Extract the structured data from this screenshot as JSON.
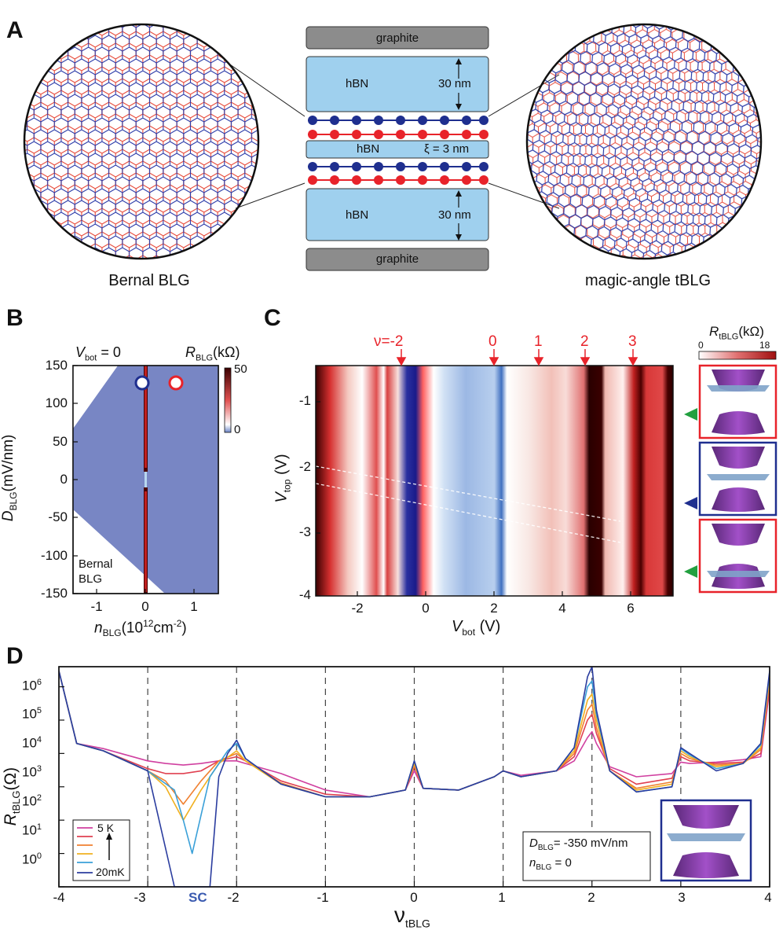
{
  "panels": {
    "a": "A",
    "b": "B",
    "c": "C",
    "d": "D"
  },
  "panelA": {
    "left_caption": "Bernal BLG",
    "right_caption": "magic-angle tBLG",
    "stack": {
      "top_graphite": "graphite",
      "top_hbn": "hBN",
      "top_thickness": "30 nm",
      "mid_hbn": "hBN",
      "xi_label": "ξ = 3 nm",
      "bottom_hbn": "hBN",
      "bottom_thickness": "30 nm",
      "bottom_graphite": "graphite"
    },
    "colors": {
      "blue_atom": "#1f2f8f",
      "red_atom": "#e8232a",
      "hbn": "#9fd0ee",
      "graphite": "#8c8c8c"
    }
  },
  "panelB": {
    "vbot_label": "V",
    "vbot_sub": "bot",
    "vbot_value": " = 0",
    "cb_label": "R",
    "cb_sub": "BLG",
    "cb_unit": "(kΩ)",
    "cb_max": "50",
    "cb_min": "0",
    "inset_label_1": "Bernal",
    "inset_label_2": "BLG",
    "ylabel": "D",
    "ylabel_sub": "BLG",
    "ylabel_unit": "(mV/nm)",
    "xlabel": "n",
    "xlabel_sub": "BLG",
    "xlabel_unit": "(10",
    "xlabel_exp": "12",
    "xlabel_tail": "cm",
    "xlabel_exp2": "-2",
    "xlabel_close": ")"
  },
  "panelC": {
    "filling_labels": [
      "ν=-2",
      "0",
      "1",
      "2",
      "3"
    ],
    "cb_label": "R",
    "cb_sub": "tBLG",
    "cb_unit": "(kΩ)",
    "cb_min": "0",
    "cb_max": "18",
    "ylabel": "V",
    "ylabel_sub": "top",
    "ylabel_unit": " (V)",
    "xlabel": "V",
    "xlabel_sub": "bot",
    "xlabel_unit": " (V)"
  },
  "panelD": {
    "legend_top": "5 K",
    "legend_bottom": "20mK",
    "sc_label": "SC",
    "annot_d": "D",
    "annot_d_sub": "BLG",
    "annot_d_val": "= -350 mV/nm",
    "annot_n": "n",
    "annot_n_sub": "BLG",
    "annot_n_val": " = 0",
    "ylabel": "R",
    "ylabel_sub": "tBLG",
    "ylabel_unit": "(Ω)",
    "xlabel": "ν",
    "xlabel_sub": "tBLG"
  },
  "chart_data": [
    {
      "type": "heatmap",
      "xlim": [
        -1.5,
        1.5
      ],
      "ylim": [
        -150,
        150
      ],
      "x_ticks": [
        "-1",
        "0",
        "1"
      ],
      "y_ticks": [
        "150",
        "100",
        "50",
        "0",
        "-50",
        "-100",
        "-150"
      ],
      "markers": [
        {
          "x": -0.05,
          "y": 130,
          "color": "#1f2f8f"
        },
        {
          "x": 0.6,
          "y": 130,
          "color": "#e8232a"
        }
      ]
    },
    {
      "type": "heatmap",
      "xlim": [
        -3.2,
        7.6
      ],
      "ylim": [
        -4,
        -0.5
      ],
      "x_ticks": [
        "-2",
        "0",
        "2",
        "4",
        "6"
      ],
      "y_ticks": [
        "-1",
        "-2",
        "-3",
        "-4"
      ],
      "arrow_positions_vbot": [
        -0.7,
        2.0,
        3.3,
        4.6,
        6.1
      ]
    },
    {
      "type": "line",
      "log_y": true,
      "xlim": [
        -4,
        4
      ],
      "ylim": [
        1,
        4000000
      ],
      "x_ticks": [
        "-4",
        "-3",
        "-2",
        "-1",
        "0",
        "1",
        "2",
        "3",
        "4"
      ],
      "y_ticks": [
        "10",
        "10",
        "10",
        "10",
        "10",
        "10",
        "10"
      ],
      "y_ticks_exp": [
        "0",
        "1",
        "2",
        "3",
        "4",
        "5",
        "6"
      ],
      "dashed_x": [
        -3,
        -2,
        -1,
        0,
        1,
        2,
        3
      ],
      "series": [
        {
          "color": "#2b3d9f",
          "x": [
            -4,
            -3.8,
            -3.5,
            -3,
            -2.7,
            -2.5,
            -2.3,
            -2.2,
            -2.1,
            -2,
            -1.9,
            -1.5,
            -1,
            -0.5,
            -0.1,
            0,
            0.1,
            0.5,
            0.9,
            1,
            1.2,
            1.6,
            1.8,
            1.95,
            2,
            2.05,
            2.2,
            2.5,
            2.9,
            3,
            3.1,
            3.4,
            3.7,
            3.9,
            4
          ],
          "y": [
            3000000,
            20000,
            12000,
            3000,
            1,
            1,
            1,
            2000,
            10000,
            25000,
            7000,
            1200,
            500,
            500,
            800,
            6000,
            900,
            800,
            2000,
            3000,
            2000,
            3000,
            15000,
            2000000,
            4000000,
            200000,
            3000,
            700,
            1000,
            15000,
            10000,
            3000,
            5000,
            20000,
            3000000
          ]
        },
        {
          "color": "#3aa0d8",
          "x": [
            -4,
            -3.8,
            -3.5,
            -3,
            -2.7,
            -2.6,
            -2.5,
            -2.3,
            -2.1,
            -2,
            -1.9,
            -1.5,
            -1,
            -0.5,
            -0.1,
            0,
            0.1,
            0.5,
            0.9,
            1,
            1.2,
            1.6,
            1.8,
            1.95,
            2,
            2.05,
            2.2,
            2.5,
            2.9,
            3,
            3.1,
            3.4,
            3.7,
            3.9,
            4
          ],
          "y": [
            3000000,
            20000,
            12000,
            3000,
            800,
            100,
            10,
            2000,
            12000,
            20000,
            7000,
            1200,
            500,
            500,
            800,
            6000,
            900,
            800,
            2000,
            3000,
            2000,
            3000,
            15000,
            1000000,
            1500000,
            150000,
            3000,
            700,
            1000,
            14000,
            9000,
            3500,
            5000,
            18000,
            2500000
          ]
        },
        {
          "color": "#f0b020",
          "x": [
            -4,
            -3.8,
            -3.5,
            -3,
            -2.8,
            -2.6,
            -2.4,
            -2.2,
            -2,
            -1.9,
            -1.5,
            -1,
            -0.5,
            -0.1,
            0,
            0.1,
            0.5,
            0.9,
            1,
            1.2,
            1.6,
            1.8,
            1.95,
            2,
            2.05,
            2.2,
            2.5,
            2.9,
            3,
            3.1,
            3.4,
            3.7,
            3.9,
            4
          ],
          "y": [
            3000000,
            20000,
            12000,
            3000,
            1000,
            100,
            800,
            5000,
            12000,
            6000,
            1200,
            500,
            500,
            800,
            5000,
            900,
            800,
            2000,
            3000,
            2000,
            3000,
            12000,
            400000,
            600000,
            100000,
            3000,
            800,
            1200,
            12000,
            8000,
            4000,
            5000,
            15000,
            2000000
          ]
        },
        {
          "color": "#f08030",
          "x": [
            -4,
            -3.8,
            -3.5,
            -3,
            -2.8,
            -2.6,
            -2.4,
            -2.2,
            -2,
            -1.9,
            -1.5,
            -1,
            -0.5,
            -0.1,
            0,
            0.1,
            0.5,
            0.9,
            1,
            1.2,
            1.6,
            1.8,
            1.95,
            2,
            2.05,
            2.2,
            2.5,
            2.9,
            3,
            3.1,
            3.4,
            3.7,
            3.9,
            4
          ],
          "y": [
            3000000,
            20000,
            12000,
            3000,
            1500,
            300,
            1500,
            6000,
            10000,
            6000,
            1300,
            500,
            500,
            800,
            4500,
            900,
            800,
            2000,
            3000,
            2000,
            3000,
            10000,
            200000,
            300000,
            60000,
            3000,
            900,
            1400,
            10000,
            7000,
            4500,
            5000,
            13000,
            1500000
          ]
        },
        {
          "color": "#e04050",
          "x": [
            -4,
            -3.8,
            -3.5,
            -3,
            -2.8,
            -2.6,
            -2.4,
            -2.2,
            -2,
            -1.9,
            -1.5,
            -1,
            -0.5,
            -0.1,
            0,
            0.1,
            0.5,
            0.9,
            1,
            1.2,
            1.6,
            1.8,
            1.95,
            2,
            2.05,
            2.2,
            2.5,
            2.9,
            3,
            3.1,
            3.4,
            3.7,
            3.9,
            4
          ],
          "y": [
            3000000,
            20000,
            12000,
            3500,
            2500,
            2500,
            3000,
            6000,
            8000,
            6000,
            1500,
            600,
            500,
            800,
            4000,
            900,
            800,
            2000,
            3000,
            2000,
            3000,
            8000,
            100000,
            150000,
            40000,
            3500,
            1200,
            1800,
            8000,
            6000,
            5000,
            5500,
            10000,
            1000000
          ]
        },
        {
          "color": "#d040a0",
          "x": [
            -4,
            -3.8,
            -3.5,
            -3,
            -2.8,
            -2.6,
            -2.4,
            -2.2,
            -2,
            -1.9,
            -1.5,
            -1,
            -0.5,
            -0.1,
            0,
            0.1,
            0.5,
            0.9,
            1,
            1.2,
            1.6,
            1.8,
            1.95,
            2,
            2.05,
            2.2,
            2.5,
            2.9,
            3,
            3.1,
            3.4,
            3.7,
            3.9,
            4
          ],
          "y": [
            3000000,
            20000,
            14000,
            6000,
            5000,
            4500,
            5000,
            6000,
            6000,
            5000,
            2500,
            800,
            500,
            800,
            3000,
            900,
            800,
            2000,
            3000,
            2200,
            3000,
            6000,
            30000,
            45000,
            20000,
            4000,
            2000,
            2500,
            5500,
            5000,
            5500,
            6500,
            8000,
            800000
          ]
        }
      ]
    }
  ]
}
